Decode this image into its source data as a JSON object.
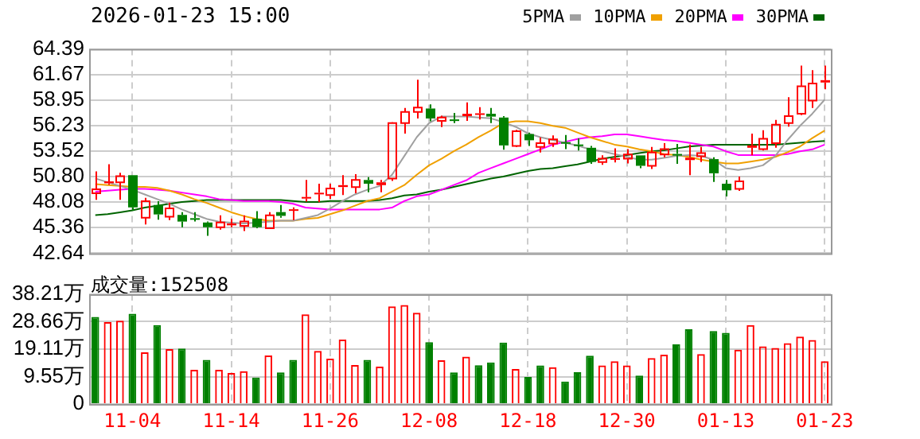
{
  "chart_data": [
    {
      "type": "candlestick",
      "title": "2026-01-23 15:00",
      "categories": [
        null,
        null,
        null,
        null,
        null,
        null,
        null,
        null,
        null,
        null,
        null,
        null,
        null,
        null,
        null,
        null,
        null,
        null,
        null,
        null,
        null,
        null,
        null,
        null,
        null,
        null,
        null,
        null,
        null,
        null,
        null,
        null,
        null,
        null,
        null,
        null,
        null,
        null,
        null,
        null,
        null,
        null,
        null,
        null,
        null,
        null,
        null,
        null,
        null,
        null,
        null,
        null,
        null,
        null,
        null,
        null,
        null,
        null,
        null,
        null
      ],
      "ohlc": [
        [
          49.03,
          51.35,
          48.33,
          49.44
        ],
        [
          50.09,
          52.11,
          49.94,
          50.29
        ],
        [
          50.19,
          51.2,
          48.33,
          50.85
        ],
        [
          50.95,
          50.95,
          47.17,
          47.52
        ],
        [
          46.42,
          48.53,
          45.71,
          48.18
        ],
        [
          47.78,
          48.18,
          46.21,
          46.77
        ],
        [
          46.52,
          48.03,
          46.16,
          47.42
        ],
        [
          46.72,
          47.02,
          45.41,
          46.01
        ],
        [
          46.37,
          47.02,
          46.01,
          46.27
        ],
        [
          45.91,
          46.01,
          44.5,
          45.41
        ],
        [
          45.41,
          46.67,
          45.16,
          45.91
        ],
        [
          45.61,
          46.32,
          45.41,
          45.81
        ],
        [
          45.56,
          46.67,
          45.01,
          46.01
        ],
        [
          46.32,
          47.12,
          45.31,
          45.41
        ],
        [
          45.31,
          47.02,
          45.21,
          46.67
        ],
        [
          47.02,
          47.78,
          46.42,
          46.62
        ],
        [
          47.17,
          47.52,
          46.16,
          47.32
        ],
        [
          48.48,
          50.44,
          48.13,
          48.63
        ],
        [
          48.93,
          50.04,
          48.08,
          49.08
        ],
        [
          48.83,
          50.04,
          48.43,
          49.54
        ],
        [
          49.69,
          50.95,
          48.83,
          49.89
        ],
        [
          49.69,
          51.05,
          49.03,
          50.44
        ],
        [
          50.44,
          50.75,
          49.14,
          50.04
        ],
        [
          49.89,
          50.44,
          49.14,
          50.19
        ],
        [
          50.6,
          56.59,
          50.34,
          56.49
        ],
        [
          56.49,
          58.1,
          55.38,
          57.69
        ],
        [
          57.69,
          61.12,
          56.99,
          58.15
        ],
        [
          58.05,
          58.5,
          56.69,
          56.99
        ],
        [
          56.74,
          57.29,
          56.08,
          57.09
        ],
        [
          56.89,
          57.59,
          56.49,
          56.74
        ],
        [
          57.24,
          58.7,
          56.74,
          57.49
        ],
        [
          57.44,
          58.2,
          56.89,
          57.54
        ],
        [
          57.49,
          58.1,
          56.49,
          57.19
        ],
        [
          57.09,
          57.24,
          53.67,
          54.12
        ],
        [
          54.07,
          55.78,
          53.97,
          55.63
        ],
        [
          55.33,
          55.48,
          54.07,
          54.67
        ],
        [
          53.97,
          54.98,
          53.36,
          54.37
        ],
        [
          54.32,
          55.18,
          53.97,
          54.77
        ],
        [
          54.47,
          55.23,
          53.72,
          54.32
        ],
        [
          54.22,
          54.88,
          53.57,
          54.12
        ],
        [
          53.87,
          54.07,
          52.16,
          52.36
        ],
        [
          52.36,
          53.06,
          52.06,
          52.71
        ],
        [
          52.61,
          53.82,
          52.31,
          52.76
        ],
        [
          52.71,
          53.72,
          52.21,
          53.16
        ],
        [
          53.06,
          53.06,
          51.7,
          51.95
        ],
        [
          51.95,
          53.97,
          51.6,
          53.36
        ],
        [
          53.16,
          54.37,
          52.86,
          53.72
        ],
        [
          53.21,
          54.27,
          52.16,
          53.06
        ],
        [
          52.56,
          54.22,
          50.95,
          52.81
        ],
        [
          52.96,
          53.97,
          52.36,
          53.31
        ],
        [
          52.66,
          52.86,
          50.24,
          51.15
        ],
        [
          50.04,
          50.44,
          48.68,
          49.34
        ],
        [
          49.49,
          50.8,
          49.29,
          50.29
        ],
        [
          53.87,
          55.38,
          53.06,
          54.12
        ],
        [
          53.72,
          55.73,
          53.57,
          54.82
        ],
        [
          54.37,
          56.84,
          53.87,
          56.34
        ],
        [
          56.49,
          59.26,
          56.13,
          57.24
        ],
        [
          57.49,
          62.63,
          57.34,
          60.41
        ],
        [
          58.9,
          62.13,
          58.1,
          60.72
        ],
        [
          60.82,
          62.63,
          60.11,
          61.07
        ]
      ],
      "colors": [
        "#ff0000",
        "#ff0000",
        "#ff0000",
        "#008000",
        "#ff0000",
        "#008000",
        "#ff0000",
        "#008000",
        "#008000",
        "#008000",
        "#ff0000",
        "#ff0000",
        "#ff0000",
        "#008000",
        "#ff0000",
        "#008000",
        "#ff0000",
        "#ff0000",
        "#ff0000",
        "#ff0000",
        "#ff0000",
        "#ff0000",
        "#008000",
        "#ff0000",
        "#ff0000",
        "#ff0000",
        "#ff0000",
        "#008000",
        "#ff0000",
        "#008000",
        "#ff0000",
        "#ff0000",
        "#008000",
        "#008000",
        "#ff0000",
        "#008000",
        "#ff0000",
        "#ff0000",
        "#008000",
        "#008000",
        "#008000",
        "#ff0000",
        "#ff0000",
        "#ff0000",
        "#008000",
        "#ff0000",
        "#ff0000",
        "#008000",
        "#ff0000",
        "#ff0000",
        "#008000",
        "#008000",
        "#ff0000",
        "#ff0000",
        "#ff0000",
        "#ff0000",
        "#ff0000",
        "#ff0000",
        "#ff0000",
        "#ff0000"
      ],
      "series": [
        {
          "name": "5PMA",
          "type": "line",
          "color": "#a0a0a0",
          "values": [
            50.6,
            50.2,
            49.8,
            49.4,
            48.9,
            48.4,
            47.9,
            47.3,
            46.8,
            46.3,
            46.0,
            45.9,
            45.8,
            45.9,
            46.0,
            46.1,
            46.1,
            46.4,
            46.7,
            47.4,
            48.2,
            48.9,
            49.4,
            49.8,
            51.0,
            53.0,
            55.0,
            56.5,
            57.2,
            57.2,
            57.2,
            57.1,
            57.0,
            56.6,
            56.1,
            55.4,
            55.0,
            54.7,
            54.4,
            54.1,
            53.7,
            53.5,
            53.2,
            52.9,
            52.6,
            52.6,
            52.8,
            53.0,
            53.1,
            53.0,
            52.6,
            51.7,
            51.5,
            51.7,
            52.0,
            53.0,
            54.7,
            56.2,
            57.5,
            59.0
          ]
        },
        {
          "name": "10PMA",
          "type": "line",
          "color": "#f0a000",
          "values": [
            50.0,
            49.9,
            49.8,
            49.7,
            49.7,
            49.6,
            49.3,
            48.9,
            48.4,
            48.0,
            47.5,
            47.0,
            46.6,
            46.3,
            46.1,
            46.1,
            46.1,
            46.3,
            46.4,
            46.8,
            47.2,
            47.7,
            48.2,
            48.5,
            49.2,
            49.9,
            51.0,
            52.0,
            52.7,
            53.5,
            54.2,
            55.0,
            55.7,
            56.5,
            56.7,
            56.7,
            56.5,
            56.2,
            56.0,
            55.5,
            55.0,
            54.6,
            54.2,
            54.0,
            53.7,
            53.5,
            53.2,
            53.1,
            52.9,
            52.6,
            52.4,
            52.2,
            52.2,
            52.4,
            52.6,
            52.9,
            53.4,
            54.0,
            54.9,
            55.7
          ]
        },
        {
          "name": "20PMA",
          "type": "line",
          "color": "#ff00ff",
          "values": [
            49.2,
            49.3,
            49.4,
            49.5,
            49.5,
            49.4,
            49.3,
            49.1,
            48.9,
            48.7,
            48.4,
            48.3,
            48.2,
            48.2,
            48.2,
            48.1,
            47.9,
            47.5,
            47.4,
            47.3,
            47.3,
            47.3,
            47.3,
            47.3,
            47.5,
            48.2,
            48.7,
            48.9,
            49.4,
            49.9,
            50.4,
            51.2,
            51.7,
            52.2,
            52.7,
            53.2,
            53.7,
            54.2,
            54.5,
            54.8,
            55.0,
            55.1,
            55.3,
            55.3,
            55.1,
            54.9,
            54.7,
            54.6,
            54.4,
            54.2,
            54.0,
            53.5,
            53.1,
            53.1,
            53.1,
            53.1,
            53.2,
            53.5,
            53.7,
            54.2
          ]
        },
        {
          "name": "30PMA",
          "type": "line",
          "color": "#006400",
          "values": [
            46.7,
            46.8,
            47.0,
            47.2,
            47.5,
            47.7,
            47.9,
            48.1,
            48.2,
            48.3,
            48.3,
            48.3,
            48.3,
            48.3,
            48.3,
            48.3,
            48.2,
            48.1,
            48.1,
            48.2,
            48.2,
            48.2,
            48.2,
            48.3,
            48.5,
            48.8,
            48.9,
            49.2,
            49.4,
            49.7,
            50.0,
            50.3,
            50.6,
            50.8,
            51.1,
            51.4,
            51.6,
            51.7,
            51.9,
            52.1,
            52.4,
            52.7,
            52.9,
            53.1,
            53.3,
            53.5,
            53.6,
            53.8,
            54.0,
            54.1,
            54.2,
            54.2,
            54.2,
            54.2,
            54.2,
            54.2,
            54.3,
            54.4,
            54.5,
            54.6
          ]
        }
      ],
      "ylim": [
        42.64,
        64.39
      ],
      "yticks": [
        42.64,
        45.36,
        48.08,
        {
          "value": 50.8,
          "label": "50.80"
        },
        53.52,
        56.23,
        58.95,
        61.67,
        64.39
      ],
      "grid": true,
      "legend": "top right",
      "tick_labels": "y"
    },
    {
      "type": "bar",
      "annotations": [
        "成交量:152508"
      ],
      "categories": [
        null,
        null,
        null,
        "11-04",
        null,
        null,
        null,
        null,
        null,
        null,
        null,
        "11-14",
        null,
        null,
        null,
        null,
        null,
        null,
        null,
        "11-26",
        null,
        null,
        null,
        null,
        null,
        null,
        null,
        "12-08",
        null,
        null,
        null,
        null,
        null,
        null,
        null,
        "12-18",
        null,
        null,
        null,
        null,
        null,
        null,
        null,
        "12-30",
        null,
        null,
        null,
        null,
        null,
        null,
        null,
        "01-13",
        null,
        null,
        null,
        null,
        null,
        null,
        null,
        "01-23"
      ],
      "values": [
        30.3,
        28.5,
        29.0,
        31.4,
        18.0,
        27.5,
        19.1,
        19.3,
        11.9,
        15.4,
        11.9,
        10.8,
        11.4,
        9.2,
        16.9,
        11.0,
        15.4,
        31.2,
        18.5,
        15.8,
        22.4,
        13.6,
        15.4,
        13.0,
        34.0,
        34.5,
        31.8,
        21.5,
        15.2,
        11.0,
        16.5,
        13.5,
        14.5,
        21.4,
        12.2,
        9.4,
        13.4,
        12.8,
        7.8,
        11.1,
        16.8,
        13.4,
        14.9,
        13.4,
        9.9,
        16.0,
        17.2,
        20.8,
        26.0,
        17.4,
        25.4,
        24.8,
        18.9,
        27.5,
        20.1,
        19.5,
        21.2,
        23.5,
        22.3,
        14.9
      ],
      "colors": [
        "#008000",
        "#ff0000",
        "#ff0000",
        "#008000",
        "#ff0000",
        "#008000",
        "#ff0000",
        "#008000",
        "#ff0000",
        "#008000",
        "#ff0000",
        "#ff0000",
        "#ff0000",
        "#008000",
        "#ff0000",
        "#008000",
        "#008000",
        "#ff0000",
        "#ff0000",
        "#ff0000",
        "#ff0000",
        "#ff0000",
        "#008000",
        "#ff0000",
        "#ff0000",
        "#ff0000",
        "#ff0000",
        "#008000",
        "#ff0000",
        "#008000",
        "#ff0000",
        "#008000",
        "#008000",
        "#008000",
        "#ff0000",
        "#008000",
        "#008000",
        "#ff0000",
        "#008000",
        "#008000",
        "#008000",
        "#ff0000",
        "#ff0000",
        "#ff0000",
        "#008000",
        "#ff0000",
        "#ff0000",
        "#008000",
        "#008000",
        "#ff0000",
        "#008000",
        "#008000",
        "#ff0000",
        "#ff0000",
        "#ff0000",
        "#ff0000",
        "#ff0000",
        "#ff0000",
        "#ff0000",
        "#ff0000"
      ],
      "ylim": [
        0,
        38.21
      ],
      "yticks": [
        0,
        {
          "value": 9.55,
          "label": "9.55万"
        },
        {
          "value": 19.11,
          "label": "19.11万"
        },
        {
          "value": 28.66,
          "label": "28.66万"
        },
        {
          "value": 38.21,
          "label": "38.21万"
        }
      ],
      "grid": true
    }
  ]
}
